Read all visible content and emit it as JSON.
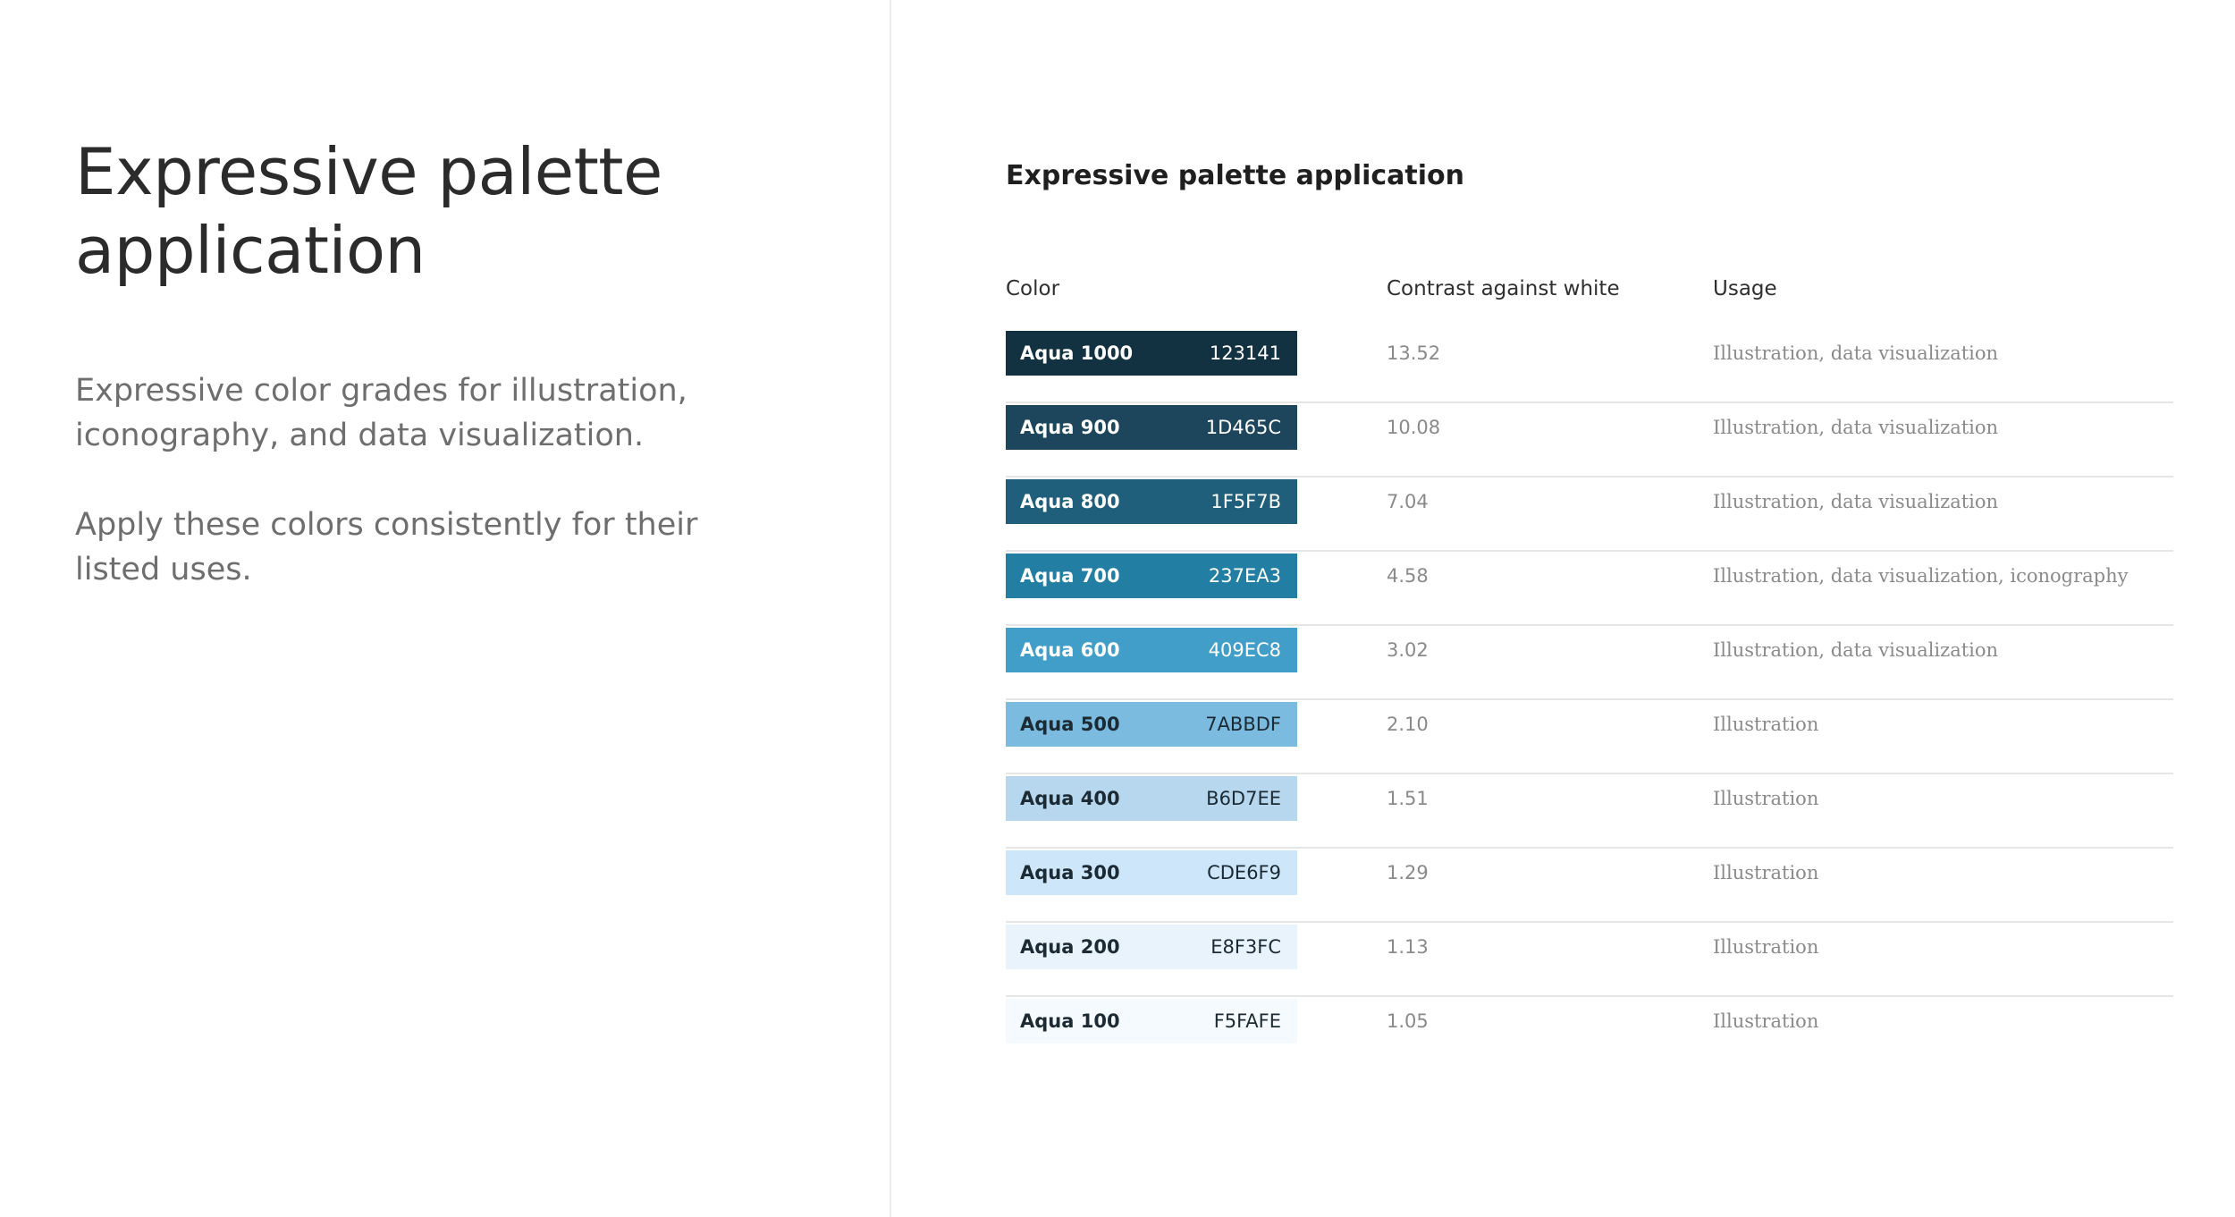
{
  "page": {
    "title": "Expressive palette application",
    "intro_1": "Expressive color grades for illustration, iconography, and data visualization.",
    "intro_2": "Apply these colors consistently for their listed uses."
  },
  "table": {
    "title": "Expressive palette application",
    "headers": {
      "color": "Color",
      "contrast": "Contrast against white",
      "usage": "Usage"
    },
    "rows": [
      {
        "name": "Aqua 1000",
        "hex": "123141",
        "contrast": "13.52",
        "usage": "Illustration, data visualization",
        "swatch_color": "#123141",
        "text_color": "#ffffff"
      },
      {
        "name": "Aqua 900",
        "hex": "1D465C",
        "contrast": "10.08",
        "usage": "Illustration, data visualization",
        "swatch_color": "#1D465C",
        "text_color": "#ffffff"
      },
      {
        "name": "Aqua 800",
        "hex": "1F5F7B",
        "contrast": "7.04",
        "usage": "Illustration, data visualization",
        "swatch_color": "#1F5F7B",
        "text_color": "#ffffff"
      },
      {
        "name": "Aqua 700",
        "hex": "237EA3",
        "contrast": "4.58",
        "usage": "Illustration, data visualization, iconography",
        "swatch_color": "#237EA3",
        "text_color": "#ffffff"
      },
      {
        "name": "Aqua 600",
        "hex": "409EC8",
        "contrast": "3.02",
        "usage": "Illustration, data visualization",
        "swatch_color": "#409EC8",
        "text_color": "#ffffff"
      },
      {
        "name": "Aqua 500",
        "hex": "7ABBDF",
        "contrast": "2.10",
        "usage": "Illustration",
        "swatch_color": "#7ABBDF",
        "text_color": "#1b2a33"
      },
      {
        "name": "Aqua 400",
        "hex": "B6D7EE",
        "contrast": "1.51",
        "usage": "Illustration",
        "swatch_color": "#B6D7EE",
        "text_color": "#1b2a33"
      },
      {
        "name": "Aqua 300",
        "hex": "CDE6F9",
        "contrast": "1.29",
        "usage": "Illustration",
        "swatch_color": "#CDE6F9",
        "text_color": "#1b2a33"
      },
      {
        "name": "Aqua 200",
        "hex": "E8F3FC",
        "contrast": "1.13",
        "usage": "Illustration",
        "swatch_color": "#E8F3FC",
        "text_color": "#1b2a33"
      },
      {
        "name": "Aqua 100",
        "hex": "F5FAFE",
        "contrast": "1.05",
        "usage": "Illustration",
        "swatch_color": "#F5FAFE",
        "text_color": "#1b2a33"
      }
    ]
  }
}
